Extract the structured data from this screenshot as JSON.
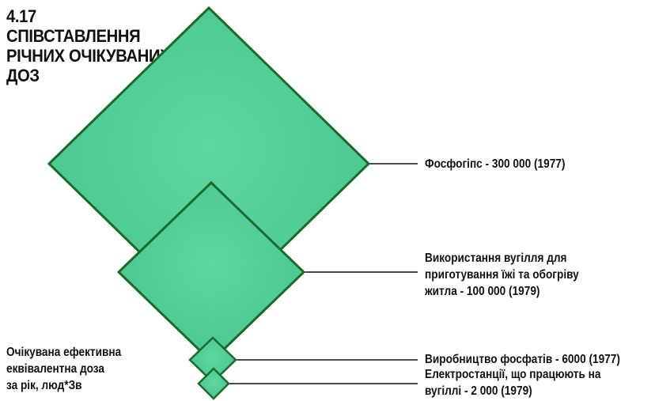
{
  "title": {
    "line1": "4.17 СПІВСТАВЛЕННЯ",
    "line2": "РІЧНИХ ОЧІКУВАНИХ",
    "line3": "ДОЗ"
  },
  "colors": {
    "fill": "#4fcf98",
    "stroke": "#1a6b2a"
  },
  "items": [
    {
      "lines": [
        "Фосфогіпс - 300 000 (1977)"
      ],
      "value": 300000,
      "year": "1977"
    },
    {
      "lines": [
        "Використання вугілля для",
        "приготування їжі та обогріву",
        "житла - 100 000 (1979)"
      ],
      "value": 100000,
      "year": "1979"
    },
    {
      "lines": [
        "Виробництво фосфатів - 6000 (1977)"
      ],
      "value": 6000,
      "year": "1977"
    },
    {
      "lines": [
        "Електростанції, що працюють на",
        "вугіллі - 2 000 (1979)"
      ],
      "value": 2000,
      "year": "1979"
    }
  ],
  "note": {
    "line1": "Очікувана ефективна",
    "line2": "еквівалентна доза",
    "line3": "за рік, люд*Зв"
  }
}
